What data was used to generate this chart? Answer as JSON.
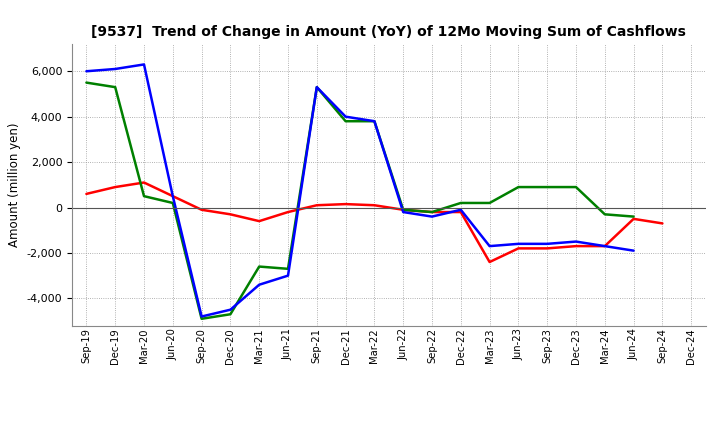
{
  "title": "[9537]  Trend of Change in Amount (YoY) of 12Mo Moving Sum of Cashflows",
  "ylabel": "Amount (million yen)",
  "x_labels": [
    "Sep-19",
    "Dec-19",
    "Mar-20",
    "Jun-20",
    "Sep-20",
    "Dec-20",
    "Mar-21",
    "Jun-21",
    "Sep-21",
    "Dec-21",
    "Mar-22",
    "Jun-22",
    "Sep-22",
    "Dec-22",
    "Mar-23",
    "Jun-23",
    "Sep-23",
    "Dec-23",
    "Mar-24",
    "Jun-24",
    "Sep-24",
    "Dec-24"
  ],
  "operating": [
    600,
    900,
    1100,
    500,
    -100,
    -300,
    -600,
    -200,
    100,
    150,
    100,
    -100,
    -200,
    -200,
    -2400,
    -1800,
    -1800,
    -1700,
    -1700,
    -500,
    -700,
    null
  ],
  "investing": [
    5500,
    5300,
    500,
    200,
    -4900,
    -4700,
    -2600,
    -2700,
    5300,
    3800,
    3800,
    -100,
    -200,
    200,
    200,
    900,
    900,
    900,
    -300,
    -400,
    null,
    null
  ],
  "free": [
    6000,
    6100,
    6300,
    500,
    -4800,
    -4500,
    -3400,
    -3000,
    5300,
    4000,
    3800,
    -200,
    -400,
    -100,
    -1700,
    -1600,
    -1600,
    -1500,
    -1700,
    -1900,
    null,
    null
  ],
  "operating_color": "#ff0000",
  "investing_color": "#008000",
  "free_color": "#0000ff",
  "ylim": [
    -5200,
    7200
  ],
  "yticks": [
    -4000,
    -2000,
    0,
    2000,
    4000,
    6000
  ],
  "background_color": "#ffffff",
  "grid_color": "#999999"
}
